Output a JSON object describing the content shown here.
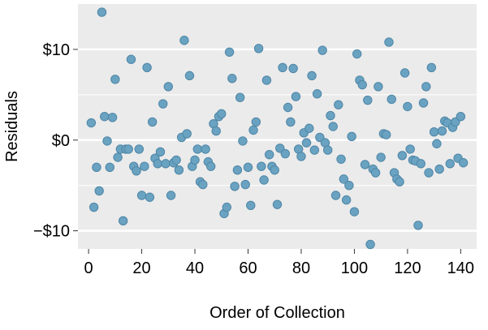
{
  "colors": {
    "panel_background": "#ebebeb",
    "gridline": "#ffffff",
    "point_fill": "#6aa2c1",
    "point_stroke": "#4f86a6"
  },
  "chart_data": {
    "type": "scatter",
    "title": "",
    "xlabel": "Order of Collection",
    "ylabel": "Residuals",
    "xlim": [
      -4,
      146
    ],
    "ylim": [
      -12,
      15
    ],
    "x_ticks": [
      {
        "value": 0,
        "label": "0"
      },
      {
        "value": 20,
        "label": "20"
      },
      {
        "value": 40,
        "label": "40"
      },
      {
        "value": 60,
        "label": "60"
      },
      {
        "value": 80,
        "label": "80"
      },
      {
        "value": 100,
        "label": "100"
      },
      {
        "value": 120,
        "label": "120"
      },
      {
        "value": 140,
        "label": "140"
      }
    ],
    "y_ticks": [
      {
        "value": -10,
        "label": "−$10"
      },
      {
        "value": 0,
        "label": "$0"
      },
      {
        "value": 10,
        "label": "$10"
      }
    ],
    "minor_y_gridlines": [
      -5,
      5
    ],
    "grid": true,
    "series": [
      {
        "x": [
          1,
          2,
          3,
          4,
          5,
          6,
          7,
          8,
          9,
          10,
          11,
          12,
          13,
          14,
          15,
          16,
          17,
          18,
          19,
          20,
          21,
          22,
          23,
          24,
          25,
          26,
          27,
          28,
          29,
          30,
          31,
          32,
          33,
          34,
          35,
          36,
          37,
          38,
          39,
          40,
          41,
          42,
          43,
          44,
          45,
          46,
          47,
          48,
          49,
          50,
          51,
          52,
          53,
          54,
          55,
          56,
          57,
          58,
          59,
          60,
          61,
          62,
          63,
          64,
          65,
          66,
          67,
          68,
          69,
          70,
          71,
          72,
          73,
          74,
          75,
          76,
          77,
          78,
          79,
          80,
          81,
          82,
          83,
          84,
          85,
          86,
          87,
          88,
          89,
          90,
          91,
          92,
          93,
          94,
          95,
          96,
          97,
          98,
          99,
          100,
          101,
          102,
          103,
          104,
          105,
          106,
          107,
          108,
          109,
          110,
          111,
          112,
          113,
          114,
          115,
          116,
          117,
          118,
          119,
          120,
          121,
          122,
          123,
          124,
          125,
          126,
          127,
          128,
          129,
          130,
          131,
          132,
          133,
          134,
          135,
          136,
          137,
          138,
          139,
          140,
          141
        ],
        "y": [
          1.9,
          -7.4,
          -3.0,
          -5.6,
          14.1,
          2.6,
          -0.1,
          -3.0,
          2.5,
          6.7,
          -1.9,
          -1.0,
          -8.9,
          -1.0,
          -1.0,
          8.9,
          -2.9,
          -3.4,
          -1.0,
          -6.1,
          -2.9,
          8.0,
          -6.3,
          2.0,
          -2.0,
          -2.6,
          -1.3,
          4.0,
          -2.6,
          5.9,
          -6.1,
          -2.5,
          -2.2,
          -3.3,
          0.3,
          11.0,
          0.7,
          7.1,
          -2.9,
          -2.2,
          -1.0,
          -4.6,
          -4.9,
          -1.0,
          -2.4,
          -2.9,
          1.8,
          1.0,
          2.6,
          2.9,
          -8.1,
          -7.4,
          9.7,
          6.8,
          -5.1,
          -3.3,
          4.7,
          -0.1,
          -4.9,
          -3.0,
          -7.2,
          1.1,
          2.0,
          10.1,
          -2.9,
          -4.4,
          6.6,
          -1.6,
          -2.9,
          -3.3,
          -7.1,
          -0.9,
          8.0,
          -1.5,
          3.6,
          2.0,
          7.9,
          4.8,
          -1.0,
          -1.8,
          0.8,
          -0.3,
          1.3,
          7.1,
          -1.1,
          5.1,
          0.3,
          9.9,
          -0.3,
          -1.1,
          2.7,
          1.5,
          -6.1,
          3.9,
          -2.1,
          -4.3,
          -6.6,
          -5.0,
          0.4,
          -7.9,
          9.5,
          6.6,
          6.1,
          -2.7,
          4.4,
          -11.5,
          -3.2,
          -3.6,
          5.9,
          -1.9,
          0.7,
          0.6,
          10.8,
          4.5,
          -3.6,
          -4.3,
          -4.6,
          -1.7,
          7.4,
          3.7,
          -1.0,
          -2.2,
          -2.3,
          -9.4,
          -2.6,
          4.1,
          5.9,
          -3.6,
          8.0,
          0.9,
          -0.4,
          -3.2,
          1.0,
          2.1,
          1.9,
          -2.6,
          1.4,
          2.0,
          -2.0,
          2.6,
          -2.5
        ]
      }
    ]
  }
}
